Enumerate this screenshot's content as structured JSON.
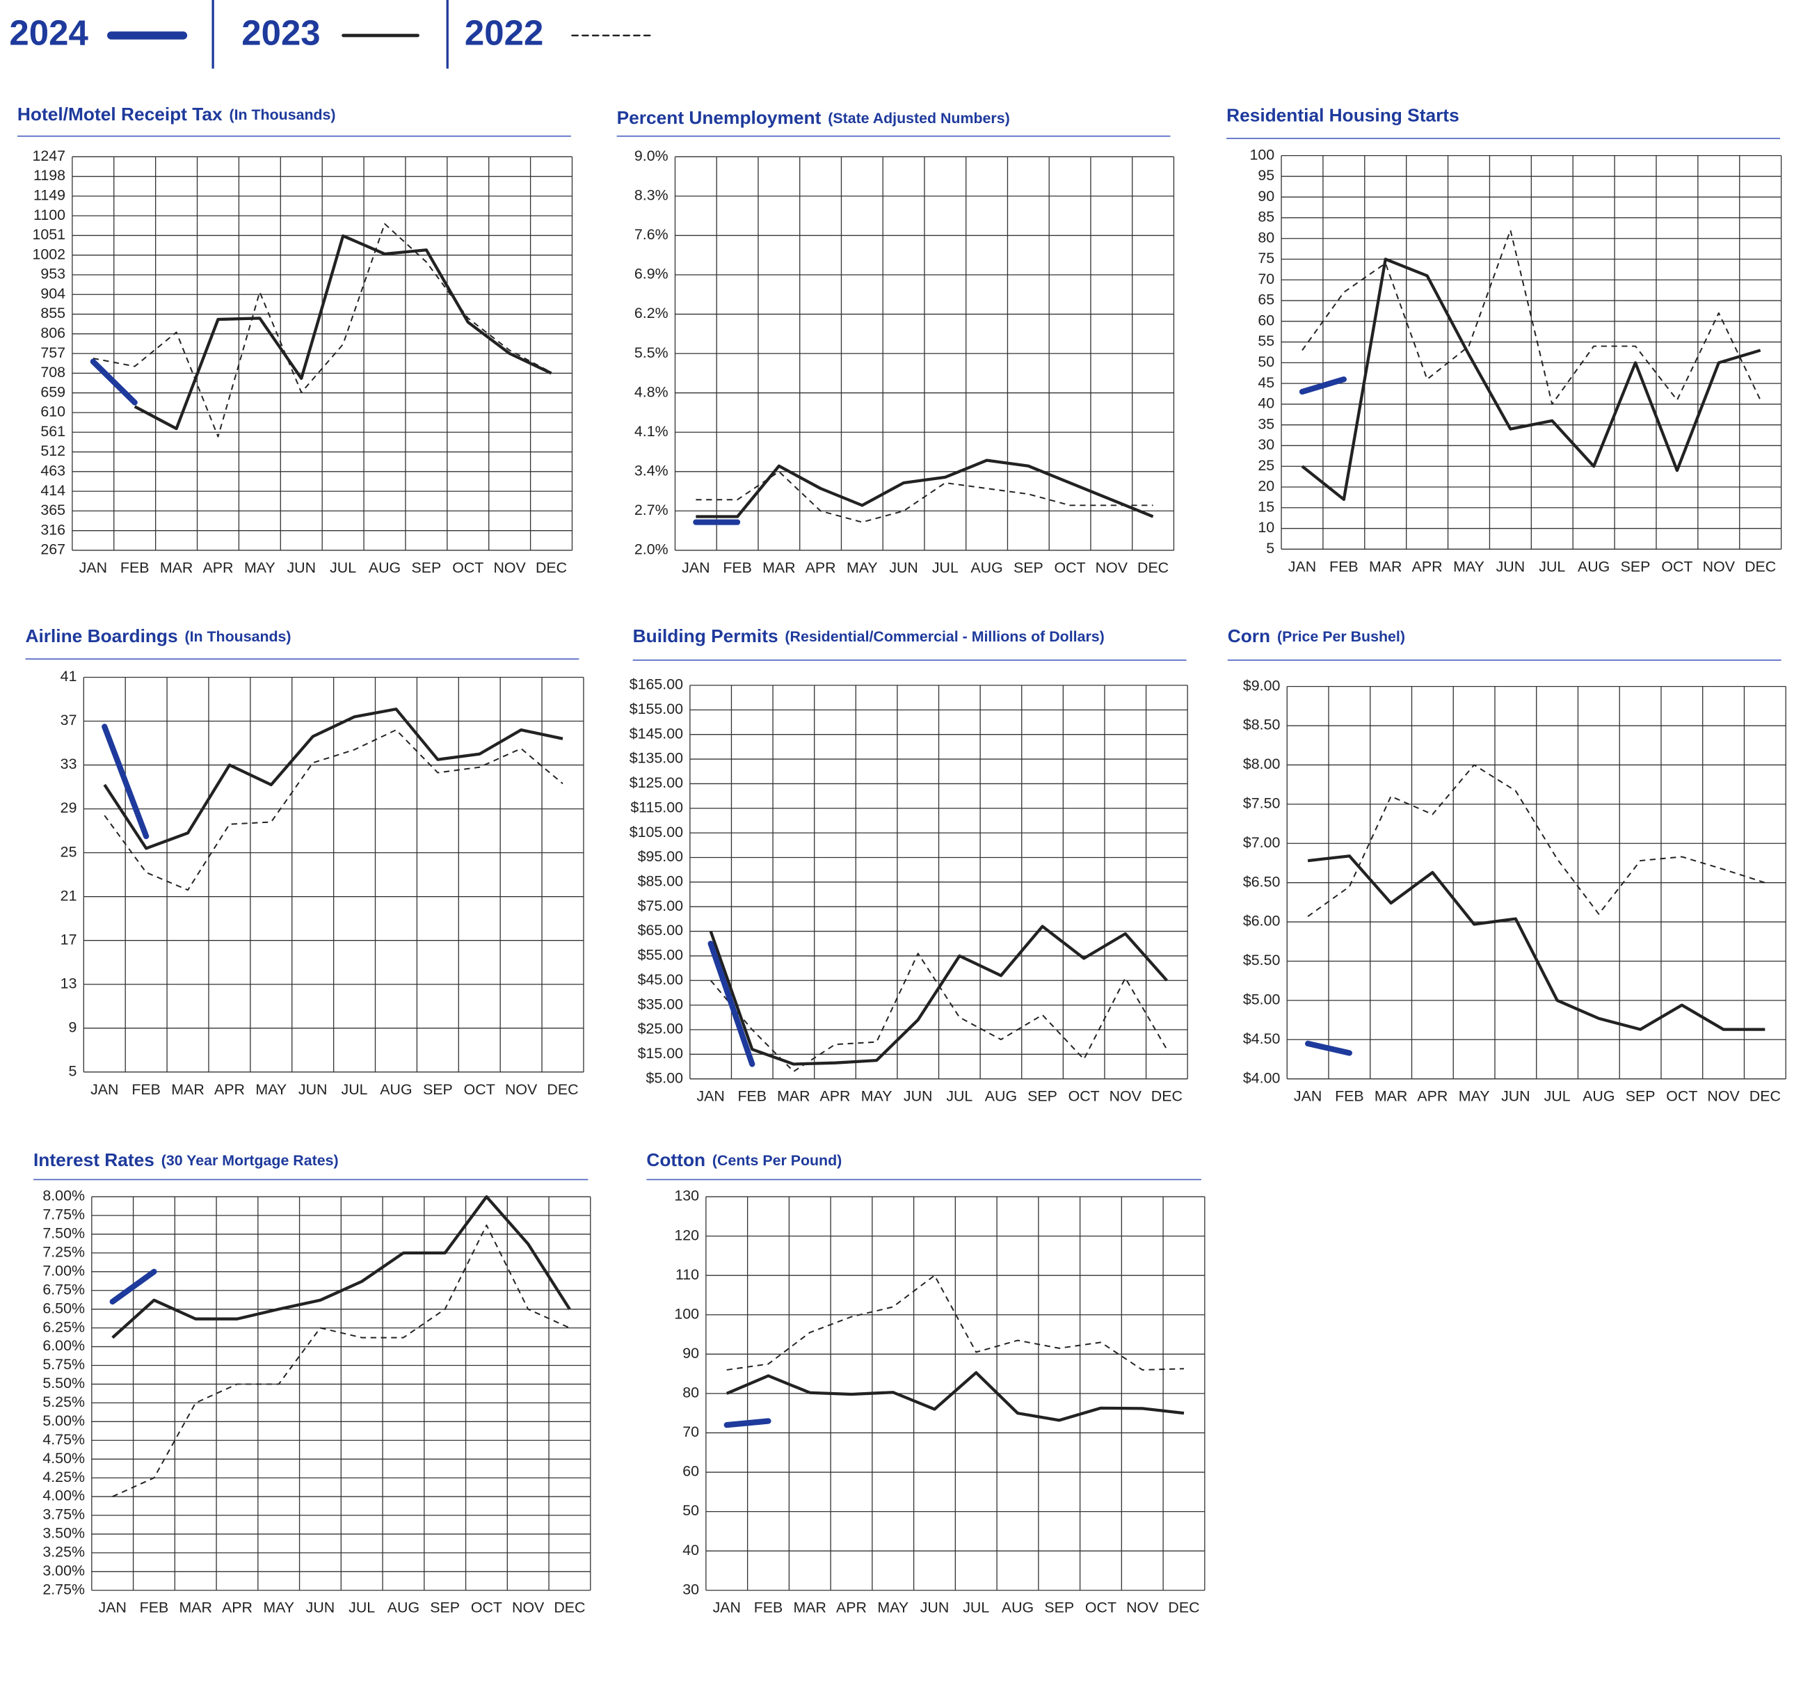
{
  "legend": [
    {
      "name": "2024",
      "color": "#1e3a9c",
      "line_style": "thick"
    },
    {
      "name": "2023",
      "color": "#222222",
      "line_style": "solid"
    },
    {
      "name": "2022",
      "color": "#222222",
      "line_style": "dashed"
    }
  ],
  "chart_data": [
    {
      "type": "line",
      "title": "Hotel/Motel Receipt Tax",
      "subtitle": "(In Thousands)",
      "categories": [
        "JAN",
        "FEB",
        "MAR",
        "APR",
        "MAY",
        "JUN",
        "JUL",
        "AUG",
        "SEP",
        "OCT",
        "NOV",
        "DEC"
      ],
      "ylim": [
        267,
        1247
      ],
      "yticks": [
        267,
        316,
        365,
        414,
        463,
        512,
        561,
        610,
        659,
        708,
        757,
        806,
        855,
        904,
        953,
        1002,
        1051,
        1100,
        1149,
        1198,
        1247
      ],
      "grid": true,
      "series": [
        {
          "name": "2024",
          "color": "#1e3a9c",
          "line_style": "thick",
          "values": [
            737,
            635,
            null,
            null,
            null,
            null,
            null,
            null,
            null,
            null,
            null,
            null
          ]
        },
        {
          "name": "2023",
          "color": "#222222",
          "line_style": "solid",
          "values": [
            null,
            625,
            570,
            842,
            845,
            695,
            1050,
            1005,
            1015,
            835,
            757,
            708
          ]
        },
        {
          "name": "2022",
          "color": "#222222",
          "line_style": "dashed",
          "values": [
            745,
            725,
            810,
            550,
            910,
            660,
            780,
            1080,
            985,
            845,
            765,
            710
          ]
        }
      ]
    },
    {
      "type": "line",
      "title": "Percent Unemployment",
      "subtitle": "(State Adjusted Numbers)",
      "categories": [
        "JAN",
        "FEB",
        "MAR",
        "APR",
        "MAY",
        "JUN",
        "JUL",
        "AUG",
        "SEP",
        "OCT",
        "NOV",
        "DEC"
      ],
      "ylim": [
        2.0,
        9.0
      ],
      "yticks": [
        {
          "value": 2.0,
          "label": "2.0%"
        },
        {
          "value": 2.7,
          "label": "2.7%"
        },
        {
          "value": 3.4,
          "label": "3.4%"
        },
        {
          "value": 4.1,
          "label": "4.1%"
        },
        {
          "value": 4.8,
          "label": "4.8%"
        },
        {
          "value": 5.5,
          "label": "5.5%"
        },
        {
          "value": 6.2,
          "label": "6.2%"
        },
        {
          "value": 6.9,
          "label": "6.9%"
        },
        {
          "value": 7.6,
          "label": "7.6%"
        },
        {
          "value": 8.3,
          "label": "8.3%"
        },
        {
          "value": 9.0,
          "label": "9.0%"
        }
      ],
      "grid": true,
      "series": [
        {
          "name": "2024",
          "color": "#1e3a9c",
          "line_style": "thick",
          "values": [
            2.5,
            2.5,
            null,
            null,
            null,
            null,
            null,
            null,
            null,
            null,
            null,
            null
          ]
        },
        {
          "name": "2023",
          "color": "#222222",
          "line_style": "solid",
          "values": [
            2.6,
            2.6,
            3.5,
            3.1,
            2.8,
            3.2,
            3.3,
            3.6,
            3.5,
            3.2,
            2.9,
            2.6
          ]
        },
        {
          "name": "2022",
          "color": "#222222",
          "line_style": "dashed",
          "values": [
            2.9,
            2.9,
            3.4,
            2.7,
            2.5,
            2.7,
            3.2,
            3.1,
            3.0,
            2.8,
            2.8,
            2.8
          ]
        }
      ]
    },
    {
      "type": "line",
      "title": "Residential Housing Starts",
      "categories": [
        "JAN",
        "FEB",
        "MAR",
        "APR",
        "MAY",
        "JUN",
        "JUL",
        "AUG",
        "SEP",
        "OCT",
        "NOV",
        "DEC"
      ],
      "ylim": [
        5,
        100
      ],
      "yticks": [
        5,
        10,
        15,
        20,
        25,
        30,
        35,
        40,
        45,
        50,
        55,
        60,
        65,
        70,
        75,
        80,
        85,
        90,
        95,
        100
      ],
      "grid": true,
      "series": [
        {
          "name": "2024",
          "color": "#1e3a9c",
          "line_style": "thick",
          "values": [
            43,
            46,
            null,
            null,
            null,
            null,
            null,
            null,
            null,
            null,
            null,
            null
          ]
        },
        {
          "name": "2023",
          "color": "#222222",
          "line_style": "solid",
          "values": [
            25,
            17,
            75,
            71,
            52,
            34,
            36,
            25,
            50,
            24,
            50,
            53
          ]
        },
        {
          "name": "2022",
          "color": "#222222",
          "line_style": "dashed",
          "values": [
            53,
            67,
            74,
            46,
            54,
            82,
            40,
            54,
            54,
            41,
            62,
            41
          ]
        }
      ]
    },
    {
      "type": "line",
      "title": "Airline Boardings",
      "subtitle": "(In Thousands)",
      "categories": [
        "JAN",
        "FEB",
        "MAR",
        "APR",
        "MAY",
        "JUN",
        "JUL",
        "AUG",
        "SEP",
        "OCT",
        "NOV",
        "DEC"
      ],
      "ylim": [
        5,
        41
      ],
      "yticks": [
        5,
        9,
        13,
        17,
        21,
        25,
        29,
        33,
        37,
        41
      ],
      "grid": true,
      "series": [
        {
          "name": "2024",
          "color": "#1e3a9c",
          "line_style": "thick",
          "values": [
            36.5,
            26.5,
            null,
            null,
            null,
            null,
            null,
            null,
            null,
            null,
            null,
            null
          ]
        },
        {
          "name": "2023",
          "color": "#222222",
          "line_style": "solid",
          "values": [
            31.2,
            25.4,
            26.8,
            33,
            31.2,
            35.6,
            37.4,
            38.1,
            33.5,
            34,
            36.2,
            35.4
          ]
        },
        {
          "name": "2022",
          "color": "#222222",
          "line_style": "dashed",
          "values": [
            28.4,
            23.2,
            21.6,
            27.6,
            27.8,
            33.2,
            34.4,
            36.2,
            32.3,
            32.8,
            34.5,
            31.3
          ]
        }
      ]
    },
    {
      "type": "line",
      "title": "Building Permits",
      "subtitle": "(Residential/Commercial - Millions of Dollars)",
      "categories": [
        "JAN",
        "FEB",
        "MAR",
        "APR",
        "MAY",
        "JUN",
        "JUL",
        "AUG",
        "SEP",
        "OCT",
        "NOV",
        "DEC"
      ],
      "ylim": [
        5,
        165
      ],
      "yticks": [
        {
          "value": 5,
          "label": "$5.00"
        },
        {
          "value": 15,
          "label": "$15.00"
        },
        {
          "value": 25,
          "label": "$25.00"
        },
        {
          "value": 35,
          "label": "$35.00"
        },
        {
          "value": 45,
          "label": "$45.00"
        },
        {
          "value": 55,
          "label": "$55.00"
        },
        {
          "value": 65,
          "label": "$65.00"
        },
        {
          "value": 75,
          "label": "$75.00"
        },
        {
          "value": 85,
          "label": "$85.00"
        },
        {
          "value": 95,
          "label": "$95.00"
        },
        {
          "value": 105,
          "label": "$105.00"
        },
        {
          "value": 115,
          "label": "$115.00"
        },
        {
          "value": 125,
          "label": "$125.00"
        },
        {
          "value": 135,
          "label": "$135.00"
        },
        {
          "value": 145,
          "label": "$145.00"
        },
        {
          "value": 155,
          "label": "$155.00"
        },
        {
          "value": 165,
          "label": "$165.00"
        }
      ],
      "grid": true,
      "series": [
        {
          "name": "2024",
          "color": "#1e3a9c",
          "line_style": "thick",
          "values": [
            60,
            11,
            null,
            null,
            null,
            null,
            null,
            null,
            null,
            null,
            null,
            null
          ]
        },
        {
          "name": "2023",
          "color": "#222222",
          "line_style": "solid",
          "values": [
            65,
            17,
            11,
            11.5,
            12.5,
            29,
            55,
            47,
            67,
            54,
            64,
            45
          ]
        },
        {
          "name": "2022",
          "color": "#222222",
          "line_style": "dashed",
          "values": [
            45,
            25,
            8,
            19,
            20,
            56,
            30,
            21,
            31,
            13,
            46,
            17
          ]
        }
      ]
    },
    {
      "type": "line",
      "title": "Corn",
      "subtitle": "(Price Per Bushel)",
      "categories": [
        "JAN",
        "FEB",
        "MAR",
        "APR",
        "MAY",
        "JUN",
        "JUL",
        "AUG",
        "SEP",
        "OCT",
        "NOV",
        "DEC"
      ],
      "ylim": [
        4,
        9
      ],
      "yticks": [
        {
          "value": 4,
          "label": "$4.00"
        },
        {
          "value": 4.5,
          "label": "$4.50"
        },
        {
          "value": 5,
          "label": "$5.00"
        },
        {
          "value": 5.5,
          "label": "$5.50"
        },
        {
          "value": 6,
          "label": "$6.00"
        },
        {
          "value": 6.5,
          "label": "$6.50"
        },
        {
          "value": 7,
          "label": "$7.00"
        },
        {
          "value": 7.5,
          "label": "$7.50"
        },
        {
          "value": 8,
          "label": "$8.00"
        },
        {
          "value": 8.5,
          "label": "$8.50"
        },
        {
          "value": 9,
          "label": "$9.00"
        }
      ],
      "grid": true,
      "series": [
        {
          "name": "2024",
          "color": "#1e3a9c",
          "line_style": "thick",
          "values": [
            4.45,
            4.33,
            null,
            null,
            null,
            null,
            null,
            null,
            null,
            null,
            null,
            null
          ]
        },
        {
          "name": "2023",
          "color": "#222222",
          "line_style": "solid",
          "values": [
            6.78,
            6.84,
            6.24,
            6.63,
            5.97,
            6.04,
            5.0,
            4.77,
            4.63,
            4.94,
            4.63,
            4.63
          ]
        },
        {
          "name": "2022",
          "color": "#222222",
          "line_style": "dashed",
          "values": [
            6.07,
            6.45,
            7.6,
            7.37,
            8.0,
            7.67,
            6.8,
            6.1,
            6.78,
            6.83,
            6.67,
            6.5
          ]
        }
      ]
    },
    {
      "type": "line",
      "title": "Interest Rates",
      "subtitle": "(30 Year Mortgage Rates)",
      "categories": [
        "JAN",
        "FEB",
        "MAR",
        "APR",
        "MAY",
        "JUN",
        "JUL",
        "AUG",
        "SEP",
        "OCT",
        "NOV",
        "DEC"
      ],
      "ylim": [
        2.75,
        8
      ],
      "yticks": [
        {
          "value": 2.75,
          "label": "2.75%"
        },
        {
          "value": 3,
          "label": "3.00%"
        },
        {
          "value": 3.25,
          "label": "3.25%"
        },
        {
          "value": 3.5,
          "label": "3.50%"
        },
        {
          "value": 3.75,
          "label": "3.75%"
        },
        {
          "value": 4,
          "label": "4.00%"
        },
        {
          "value": 4.25,
          "label": "4.25%"
        },
        {
          "value": 4.5,
          "label": "4.50%"
        },
        {
          "value": 4.75,
          "label": "4.75%"
        },
        {
          "value": 5,
          "label": "5.00%"
        },
        {
          "value": 5.25,
          "label": "5.25%"
        },
        {
          "value": 5.5,
          "label": "5.50%"
        },
        {
          "value": 5.75,
          "label": "5.75%"
        },
        {
          "value": 6,
          "label": "6.00%"
        },
        {
          "value": 6.25,
          "label": "6.25%"
        },
        {
          "value": 6.5,
          "label": "6.50%"
        },
        {
          "value": 6.75,
          "label": "6.75%"
        },
        {
          "value": 7,
          "label": "7.00%"
        },
        {
          "value": 7.25,
          "label": "7.25%"
        },
        {
          "value": 7.5,
          "label": "7.50%"
        },
        {
          "value": 7.75,
          "label": "7.75%"
        },
        {
          "value": 8,
          "label": "8.00%"
        }
      ],
      "grid": true,
      "series": [
        {
          "name": "2024",
          "color": "#1e3a9c",
          "line_style": "thick",
          "values": [
            6.6,
            7.0,
            null,
            null,
            null,
            null,
            null,
            null,
            null,
            null,
            null,
            null
          ]
        },
        {
          "name": "2023",
          "color": "#222222",
          "line_style": "solid",
          "values": [
            6.12,
            6.62,
            6.37,
            6.37,
            6.5,
            6.62,
            6.87,
            7.25,
            7.25,
            8.0,
            7.37,
            6.5
          ]
        },
        {
          "name": "2022",
          "color": "#222222",
          "line_style": "dashed",
          "values": [
            4.0,
            4.25,
            5.25,
            5.5,
            5.5,
            6.25,
            6.12,
            6.12,
            6.5,
            7.62,
            6.5,
            6.25
          ]
        }
      ]
    },
    {
      "type": "line",
      "title": "Cotton",
      "subtitle": "(Cents Per Pound)",
      "categories": [
        "JAN",
        "FEB",
        "MAR",
        "APR",
        "MAY",
        "JUN",
        "JUL",
        "AUG",
        "SEP",
        "OCT",
        "NOV",
        "DEC"
      ],
      "ylim": [
        30,
        130
      ],
      "yticks": [
        30,
        40,
        50,
        60,
        70,
        80,
        90,
        100,
        110,
        120,
        130
      ],
      "grid": true,
      "series": [
        {
          "name": "2024",
          "color": "#1e3a9c",
          "line_style": "thick",
          "values": [
            72,
            73,
            null,
            null,
            null,
            null,
            null,
            null,
            null,
            null,
            null,
            null
          ]
        },
        {
          "name": "2023",
          "color": "#222222",
          "line_style": "solid",
          "values": [
            80,
            84.5,
            80.2,
            79.8,
            80.3,
            76,
            85.3,
            75,
            73.2,
            76.3,
            76.2,
            75
          ]
        },
        {
          "name": "2022",
          "color": "#222222",
          "line_style": "dashed",
          "values": [
            86,
            87.5,
            95.5,
            99.5,
            102,
            110,
            90.5,
            93.5,
            91.5,
            93,
            86,
            86.3
          ]
        }
      ]
    }
  ]
}
